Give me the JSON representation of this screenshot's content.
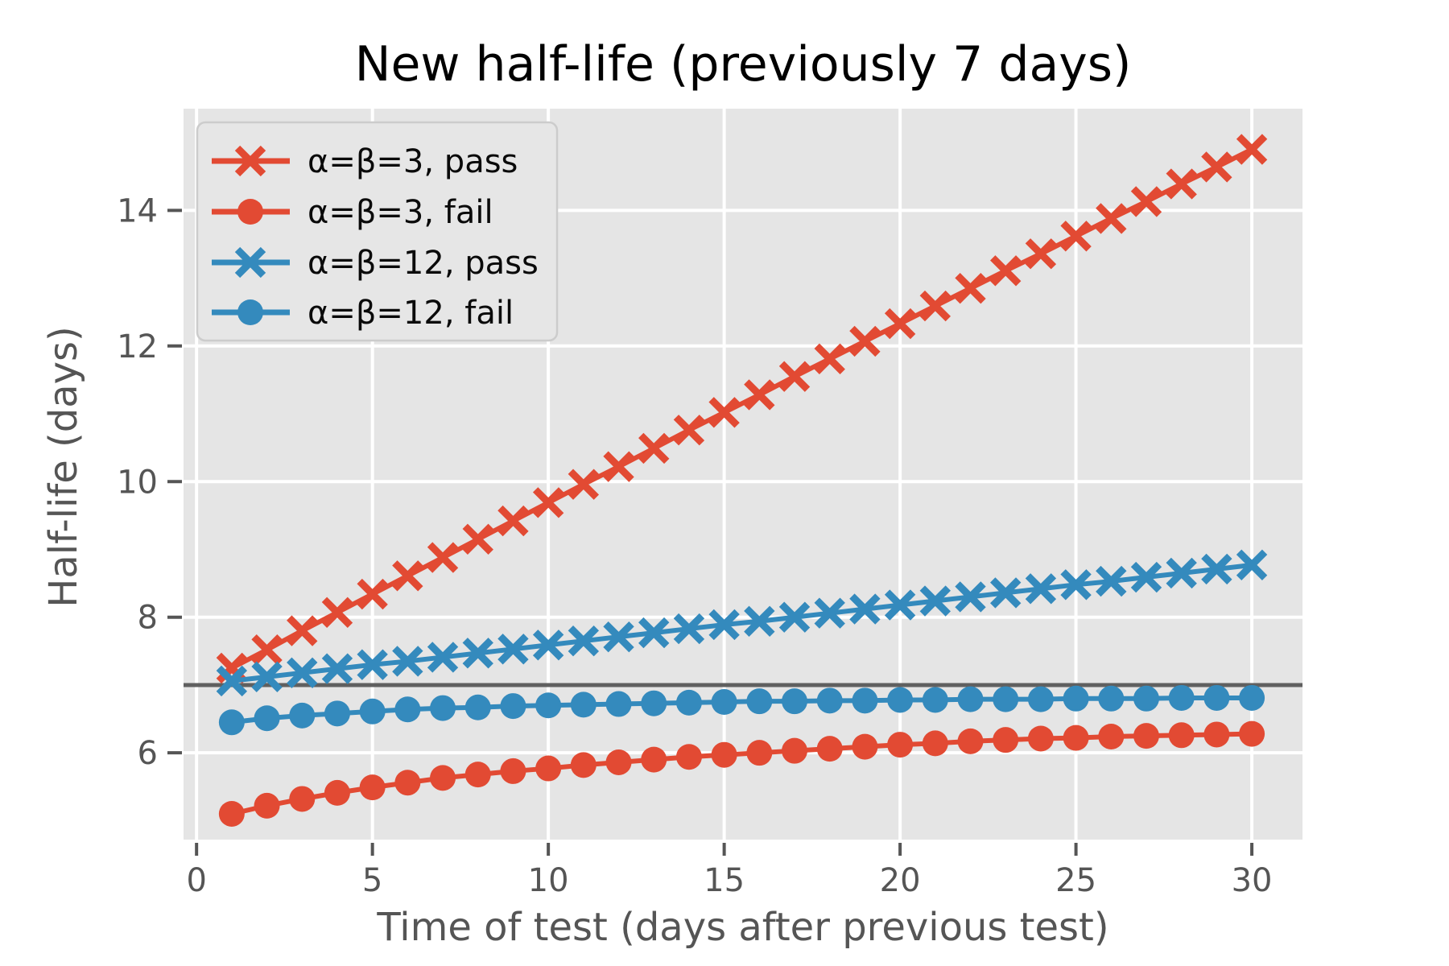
{
  "figure": {
    "background": "#ffffff"
  },
  "chart_data": {
    "type": "line",
    "title": "New half-life (previously 7 days)",
    "xlabel": "Time of test (days after previous test)",
    "ylabel": "Half-life (days)",
    "xlim": [
      -0.37,
      31.44
    ],
    "ylim": [
      4.72,
      15.5
    ],
    "xticks": [
      0,
      5,
      10,
      15,
      20,
      25,
      30
    ],
    "yticks": [
      6,
      8,
      10,
      12,
      14
    ],
    "grid": true,
    "plot_background": "#e5e5e5",
    "gridline_color": "#ffffff",
    "tick_color": "#555555",
    "reference_line": {
      "y": 7,
      "color": "#606060",
      "meaning": "previous half-life"
    },
    "legend_position": "upper-left",
    "x": [
      1,
      2,
      3,
      4,
      5,
      6,
      7,
      8,
      9,
      10,
      11,
      12,
      13,
      14,
      15,
      16,
      17,
      18,
      19,
      20,
      21,
      22,
      23,
      24,
      25,
      26,
      27,
      28,
      29,
      30
    ],
    "series": [
      {
        "name": "α=β=3, pass",
        "color": "#e24a33",
        "marker": "x",
        "values": [
          7.25,
          7.52,
          7.8,
          8.07,
          8.34,
          8.61,
          8.88,
          9.15,
          9.42,
          9.69,
          9.96,
          10.22,
          10.49,
          10.76,
          11.02,
          11.28,
          11.55,
          11.81,
          12.07,
          12.33,
          12.59,
          12.85,
          13.11,
          13.36,
          13.62,
          13.88,
          14.13,
          14.39,
          14.64,
          14.9
        ]
      },
      {
        "name": "α=β=3, fail",
        "color": "#e24a33",
        "marker": "o",
        "values": [
          5.1,
          5.22,
          5.32,
          5.41,
          5.49,
          5.56,
          5.63,
          5.68,
          5.73,
          5.77,
          5.82,
          5.86,
          5.9,
          5.94,
          5.97,
          6.0,
          6.03,
          6.06,
          6.09,
          6.12,
          6.14,
          6.17,
          6.19,
          6.21,
          6.22,
          6.24,
          6.25,
          6.26,
          6.27,
          6.28
        ]
      },
      {
        "name": "α=β=12, pass",
        "color": "#348abd",
        "marker": "x",
        "values": [
          7.06,
          7.12,
          7.18,
          7.24,
          7.3,
          7.35,
          7.41,
          7.47,
          7.53,
          7.59,
          7.65,
          7.71,
          7.77,
          7.83,
          7.89,
          7.94,
          8.0,
          8.06,
          8.12,
          8.18,
          8.24,
          8.3,
          8.36,
          8.42,
          8.48,
          8.53,
          8.59,
          8.65,
          8.71,
          8.77
        ]
      },
      {
        "name": "α=β=12, fail",
        "color": "#348abd",
        "marker": "o",
        "values": [
          6.45,
          6.51,
          6.55,
          6.58,
          6.61,
          6.64,
          6.66,
          6.67,
          6.69,
          6.7,
          6.71,
          6.72,
          6.73,
          6.74,
          6.75,
          6.76,
          6.76,
          6.77,
          6.77,
          6.78,
          6.78,
          6.79,
          6.79,
          6.79,
          6.8,
          6.8,
          6.8,
          6.81,
          6.81,
          6.81
        ]
      }
    ]
  }
}
